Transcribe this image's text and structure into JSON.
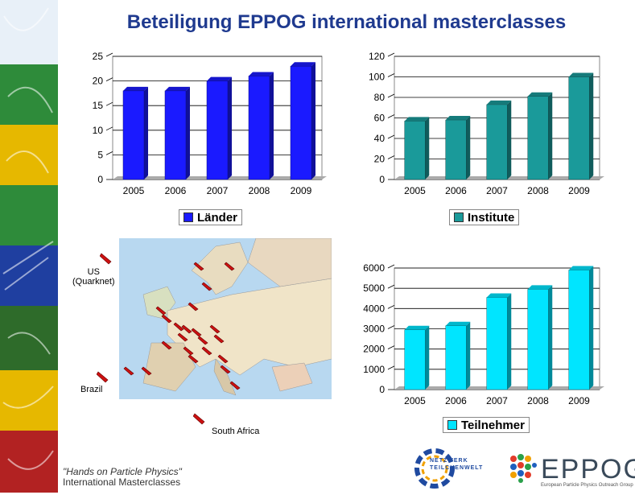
{
  "title": "Beteiligung EPPOG international masterclasses",
  "chart_data": [
    {
      "type": "bar",
      "categories": [
        "2005",
        "2006",
        "2007",
        "2008",
        "2009"
      ],
      "series": [
        {
          "name": "Länder",
          "values": [
            18,
            18,
            20,
            21,
            23
          ]
        }
      ],
      "ylim": [
        0,
        25
      ],
      "yticks": [
        "0",
        "5",
        "10",
        "15",
        "20",
        "25"
      ],
      "color": "#1a1aff"
    },
    {
      "type": "bar",
      "categories": [
        "2005",
        "2006",
        "2007",
        "2008",
        "2009"
      ],
      "series": [
        {
          "name": "Institute",
          "values": [
            57,
            58,
            73,
            81,
            100
          ]
        }
      ],
      "ylim": [
        0,
        120
      ],
      "yticks": [
        "0",
        "20",
        "40",
        "60",
        "80",
        "100",
        "120"
      ],
      "color": "#1a9a9a"
    },
    {
      "type": "bar",
      "categories": [
        "2005",
        "2006",
        "2007",
        "2008",
        "2009"
      ],
      "series": [
        {
          "name": "Teilnehmer",
          "values": [
            2950,
            3150,
            4550,
            4950,
            5900
          ]
        }
      ],
      "ylim": [
        0,
        6000
      ],
      "yticks": [
        "0",
        "1000",
        "2000",
        "3000",
        "4000",
        "5000",
        "6000"
      ],
      "color": "#00e5ff"
    }
  ],
  "map": {
    "labels": {
      "us": "US\n(Quarknet)",
      "brazil": "Brazil",
      "south_africa": "South Africa"
    }
  },
  "footer": {
    "line1": "\"Hands on Particle Physics\"",
    "line2": "International Masterclasses"
  },
  "logos": {
    "netzwerk": "NETZWERK\nTEILCHENWELT",
    "eppog": "EPPOG",
    "eppog_sub": "European Particle Physics Outreach Group"
  }
}
